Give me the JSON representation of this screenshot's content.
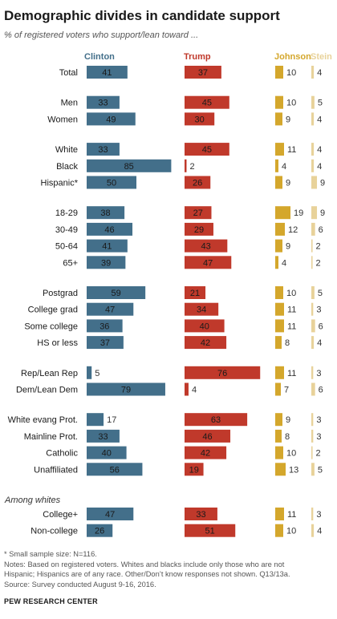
{
  "title": "Demographic divides in candidate support",
  "subtitle": "% of registered voters who support/lean toward ...",
  "notes": [
    "* Small sample size: N=116.",
    "Notes: Based on registered voters. Whites and blacks include only those who are not",
    "Hispanic; Hispanics are of any race. Other/Don’t know responses not shown. Q13/13a.",
    "Source: Survey conducted August 9-16, 2016."
  ],
  "source": "PEW RESEARCH CENTER",
  "chart_data": {
    "type": "bar",
    "series": [
      {
        "name": "Clinton",
        "color": "#436f8a"
      },
      {
        "name": "Trump",
        "color": "#c0392b"
      },
      {
        "name": "Johnson",
        "color": "#d4a72c"
      },
      {
        "name": "Stein",
        "color": "#e8d29a"
      }
    ],
    "groups": [
      {
        "heading": "",
        "rows": [
          {
            "label": "Total",
            "values": [
              41,
              37,
              10,
              4
            ]
          }
        ]
      },
      {
        "heading": "",
        "rows": [
          {
            "label": "Men",
            "values": [
              33,
              45,
              10,
              5
            ]
          },
          {
            "label": "Women",
            "values": [
              49,
              30,
              9,
              4
            ]
          }
        ]
      },
      {
        "heading": "",
        "rows": [
          {
            "label": "White",
            "values": [
              33,
              45,
              11,
              4
            ]
          },
          {
            "label": "Black",
            "values": [
              85,
              2,
              4,
              4
            ]
          },
          {
            "label": "Hispanic*",
            "values": [
              50,
              26,
              9,
              9
            ]
          }
        ]
      },
      {
        "heading": "",
        "rows": [
          {
            "label": "18-29",
            "values": [
              38,
              27,
              19,
              9
            ]
          },
          {
            "label": "30-49",
            "values": [
              46,
              29,
              12,
              6
            ]
          },
          {
            "label": "50-64",
            "values": [
              41,
              43,
              9,
              2
            ]
          },
          {
            "label": "65+",
            "values": [
              39,
              47,
              4,
              2
            ]
          }
        ]
      },
      {
        "heading": "",
        "rows": [
          {
            "label": "Postgrad",
            "values": [
              59,
              21,
              10,
              5
            ]
          },
          {
            "label": "College grad",
            "values": [
              47,
              34,
              11,
              3
            ]
          },
          {
            "label": "Some college",
            "values": [
              36,
              40,
              11,
              6
            ]
          },
          {
            "label": "HS or less",
            "values": [
              37,
              42,
              8,
              4
            ]
          }
        ]
      },
      {
        "heading": "",
        "rows": [
          {
            "label": "Rep/Lean Rep",
            "values": [
              5,
              76,
              11,
              3
            ]
          },
          {
            "label": "Dem/Lean Dem",
            "values": [
              79,
              4,
              7,
              6
            ]
          }
        ]
      },
      {
        "heading": "",
        "rows": [
          {
            "label": "White evang Prot.",
            "values": [
              17,
              63,
              9,
              3
            ]
          },
          {
            "label": "Mainline Prot.",
            "values": [
              33,
              46,
              8,
              3
            ]
          },
          {
            "label": "Catholic",
            "values": [
              40,
              42,
              10,
              2
            ]
          },
          {
            "label": "Unaffiliated",
            "values": [
              56,
              19,
              13,
              5
            ]
          }
        ]
      },
      {
        "heading": "Among whites",
        "rows": [
          {
            "label": "College+",
            "values": [
              47,
              33,
              11,
              3
            ]
          },
          {
            "label": "Non-college",
            "values": [
              26,
              51,
              10,
              4
            ]
          }
        ]
      }
    ]
  }
}
